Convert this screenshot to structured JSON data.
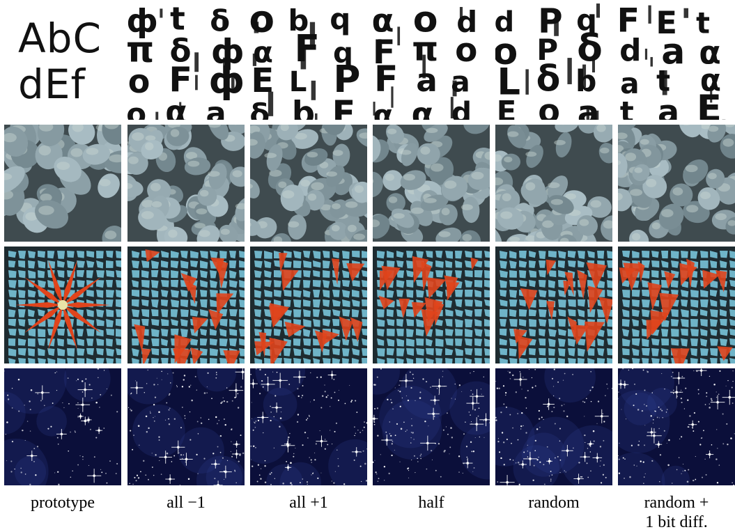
{
  "prototype_text": {
    "line1": "AbC",
    "line2": "dEf"
  },
  "captions": [
    {
      "label": "prototype"
    },
    {
      "label": "all −1"
    },
    {
      "label": "all +1"
    },
    {
      "label": "half"
    },
    {
      "label": "random"
    },
    {
      "label": "random +\n1 bit diff."
    }
  ],
  "rows": [
    {
      "texture": "letters",
      "colors": {
        "bg": "#ffffff",
        "ink": "#111111"
      }
    },
    {
      "texture": "pebbles",
      "colors": {
        "bg": "#3f4b4f",
        "stone": "#93a7ab",
        "highlight": "#c9d6d3"
      }
    },
    {
      "texture": "mosaic",
      "colors": {
        "bg": "#1e2b30",
        "tile": "#6fb4c8",
        "accent": "#e0441c"
      }
    },
    {
      "texture": "starfield",
      "colors": {
        "bg": "#0b0f3a",
        "glow": "#2a3a8c",
        "star": "#ffffff"
      }
    }
  ]
}
